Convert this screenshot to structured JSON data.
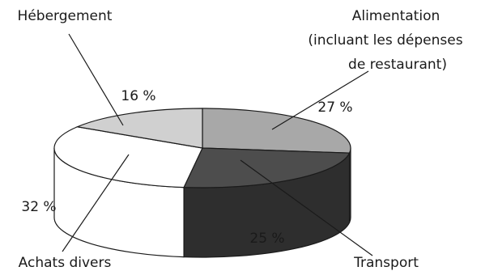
{
  "chart_data": {
    "type": "pie",
    "style": "3d",
    "title": "",
    "slices": [
      {
        "label": "Alimentation (incluant les dépenses de restaurant)",
        "label_lines": [
          "Alimentation",
          "(incluant les dépenses",
          "de restaurant)"
        ],
        "value": 27,
        "value_label": "27 %",
        "color": "#a8a8a8"
      },
      {
        "label": "Transport",
        "label_lines": [
          "Transport"
        ],
        "value": 25,
        "value_label": "25 %",
        "color": "#4d4d4d"
      },
      {
        "label": "Achats divers",
        "label_lines": [
          "Achats divers"
        ],
        "value": 32,
        "value_label": "32 %",
        "color": "#ffffff"
      },
      {
        "label": "Hébergement",
        "label_lines": [
          "Hébergement"
        ],
        "value": 16,
        "value_label": "16 %",
        "color": "#d0d0d0"
      }
    ]
  }
}
